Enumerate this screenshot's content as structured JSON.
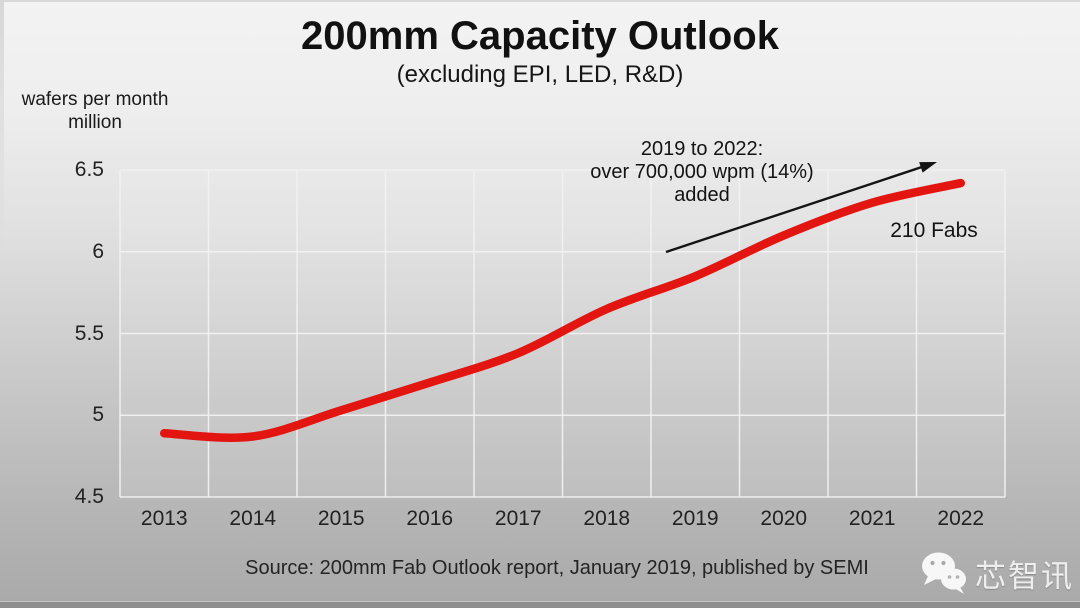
{
  "slide": {
    "title": "200mm Capacity Outlook",
    "subtitle": "(excluding EPI, LED, R&D)",
    "source_note": "Source: 200mm Fab Outlook report, January 2019, published by SEMI",
    "watermark_label": "芯智讯"
  },
  "chart_data": {
    "type": "line",
    "title": "200mm Capacity Outlook",
    "subtitle": "(excluding EPI, LED, R&D)",
    "unit_label_lines": [
      "wafers per month",
      "million"
    ],
    "categories": [
      "2013",
      "2014",
      "2015",
      "2016",
      "2017",
      "2018",
      "2019",
      "2020",
      "2021",
      "2022"
    ],
    "series": [
      {
        "name": "200mm fab capacity (million wafers per month)",
        "color": "#e31511",
        "values": [
          4.89,
          4.87,
          5.03,
          5.2,
          5.38,
          5.65,
          5.85,
          6.1,
          6.3,
          6.42
        ]
      }
    ],
    "ylim": [
      4.5,
      6.5
    ],
    "yticks": [
      "6.5",
      "6",
      "5.5",
      "5",
      "4.5"
    ],
    "ytick_values": [
      6.5,
      6.0,
      5.5,
      5.0,
      4.5
    ],
    "grid": true,
    "legend": "none",
    "annotations": {
      "growth_lines": [
        "2019 to 2022:",
        "over 700,000 wpm  (14%)",
        "added"
      ],
      "fabs_label": "210 Fabs"
    }
  },
  "colors": {
    "line": "#e31511",
    "gridline": "#f2f2f2",
    "arrow": "#141414"
  }
}
